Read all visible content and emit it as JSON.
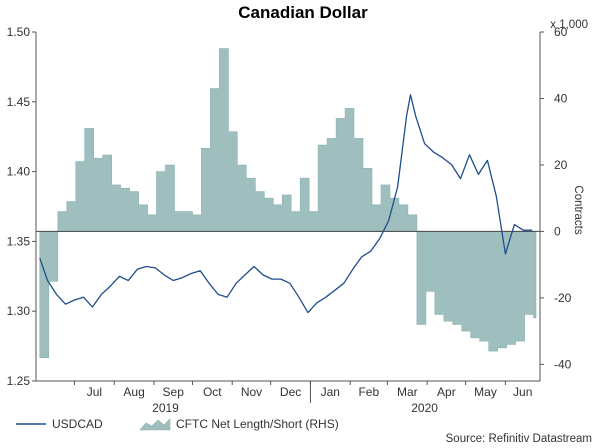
{
  "chart_data": {
    "type": "line",
    "title": "Canadian Dollar",
    "rhs_unit_label": "x 1,000",
    "rhs_axis_label": "Contracts",
    "source": "Source: Refinitiv Datastream",
    "left_axis": {
      "ylim": [
        1.25,
        1.5
      ],
      "ticks": [
        "1.25",
        "1.30",
        "1.35",
        "1.40",
        "1.45",
        "1.50"
      ]
    },
    "right_axis": {
      "ylim": [
        -45,
        60
      ],
      "ticks": [
        "-40",
        "-20",
        "0",
        "20",
        "40",
        "60"
      ]
    },
    "x_months": [
      "Jul",
      "Aug",
      "Sep",
      "Oct",
      "Nov",
      "Dec",
      "Jan",
      "Feb",
      "Mar",
      "Apr",
      "May",
      "Jun"
    ],
    "x_years": [
      "2019",
      "2020"
    ],
    "colors": {
      "line": "#1f4e8c",
      "area": "#9fbfbf",
      "area_edge": "#8ab0b0",
      "axis": "#555555"
    },
    "series": [
      {
        "name": "USDCAD",
        "axis": "left",
        "kind": "line",
        "x": [
          "2019-06-04",
          "2019-06-10",
          "2019-06-17",
          "2019-06-24",
          "2019-07-01",
          "2019-07-08",
          "2019-07-15",
          "2019-07-22",
          "2019-07-29",
          "2019-08-05",
          "2019-08-12",
          "2019-08-19",
          "2019-08-26",
          "2019-09-02",
          "2019-09-09",
          "2019-09-16",
          "2019-09-23",
          "2019-09-30",
          "2019-10-07",
          "2019-10-14",
          "2019-10-21",
          "2019-10-28",
          "2019-11-04",
          "2019-11-11",
          "2019-11-18",
          "2019-11-25",
          "2019-12-02",
          "2019-12-09",
          "2019-12-16",
          "2019-12-23",
          "2019-12-30",
          "2020-01-06",
          "2020-01-13",
          "2020-01-20",
          "2020-01-27",
          "2020-02-03",
          "2020-02-10",
          "2020-02-17",
          "2020-02-24",
          "2020-03-02",
          "2020-03-09",
          "2020-03-16",
          "2020-03-19",
          "2020-03-23",
          "2020-03-30",
          "2020-04-06",
          "2020-04-13",
          "2020-04-20",
          "2020-04-27",
          "2020-05-04",
          "2020-05-11",
          "2020-05-18",
          "2020-05-25",
          "2020-06-01",
          "2020-06-08",
          "2020-06-15",
          "2020-06-22"
        ],
        "y": [
          1.338,
          1.322,
          1.312,
          1.305,
          1.308,
          1.31,
          1.303,
          1.312,
          1.318,
          1.325,
          1.322,
          1.33,
          1.332,
          1.331,
          1.326,
          1.322,
          1.324,
          1.327,
          1.329,
          1.32,
          1.312,
          1.31,
          1.32,
          1.326,
          1.332,
          1.326,
          1.323,
          1.323,
          1.32,
          1.31,
          1.299,
          1.306,
          1.31,
          1.315,
          1.32,
          1.33,
          1.339,
          1.343,
          1.352,
          1.365,
          1.389,
          1.44,
          1.455,
          1.44,
          1.42,
          1.414,
          1.41,
          1.405,
          1.395,
          1.412,
          1.398,
          1.408,
          1.382,
          1.341,
          1.362,
          1.358,
          1.358
        ]
      },
      {
        "name": "CFTC Net Length/Short (RHS)",
        "axis": "right",
        "kind": "area-step",
        "x": [
          "2019-06-04",
          "2019-06-11",
          "2019-06-18",
          "2019-06-25",
          "2019-07-02",
          "2019-07-09",
          "2019-07-16",
          "2019-07-23",
          "2019-07-30",
          "2019-08-06",
          "2019-08-13",
          "2019-08-20",
          "2019-08-27",
          "2019-09-03",
          "2019-09-10",
          "2019-09-17",
          "2019-09-24",
          "2019-10-01",
          "2019-10-08",
          "2019-10-15",
          "2019-10-22",
          "2019-10-29",
          "2019-11-05",
          "2019-11-12",
          "2019-11-19",
          "2019-11-26",
          "2019-12-03",
          "2019-12-10",
          "2019-12-17",
          "2019-12-24",
          "2019-12-31",
          "2020-01-07",
          "2020-01-14",
          "2020-01-21",
          "2020-01-28",
          "2020-02-04",
          "2020-02-11",
          "2020-02-18",
          "2020-02-25",
          "2020-03-03",
          "2020-03-10",
          "2020-03-17",
          "2020-03-24",
          "2020-03-31",
          "2020-04-07",
          "2020-04-14",
          "2020-04-21",
          "2020-04-28",
          "2020-05-05",
          "2020-05-12",
          "2020-05-19",
          "2020-05-26",
          "2020-06-02",
          "2020-06-09",
          "2020-06-16",
          "2020-06-23"
        ],
        "y": [
          -38,
          -15,
          6,
          9,
          21,
          31,
          22,
          23,
          14,
          13,
          12,
          8,
          5,
          18,
          20,
          6,
          6,
          5,
          25,
          43,
          55,
          30,
          20,
          16,
          12,
          10,
          8,
          11,
          6,
          16,
          6,
          26,
          28,
          34,
          37,
          28,
          19,
          8,
          14,
          10,
          8,
          5,
          -28,
          -18,
          -25,
          -27,
          -28,
          -30,
          -32,
          -33,
          -36,
          -35,
          -34,
          -33,
          -25,
          -26
        ]
      }
    ]
  }
}
